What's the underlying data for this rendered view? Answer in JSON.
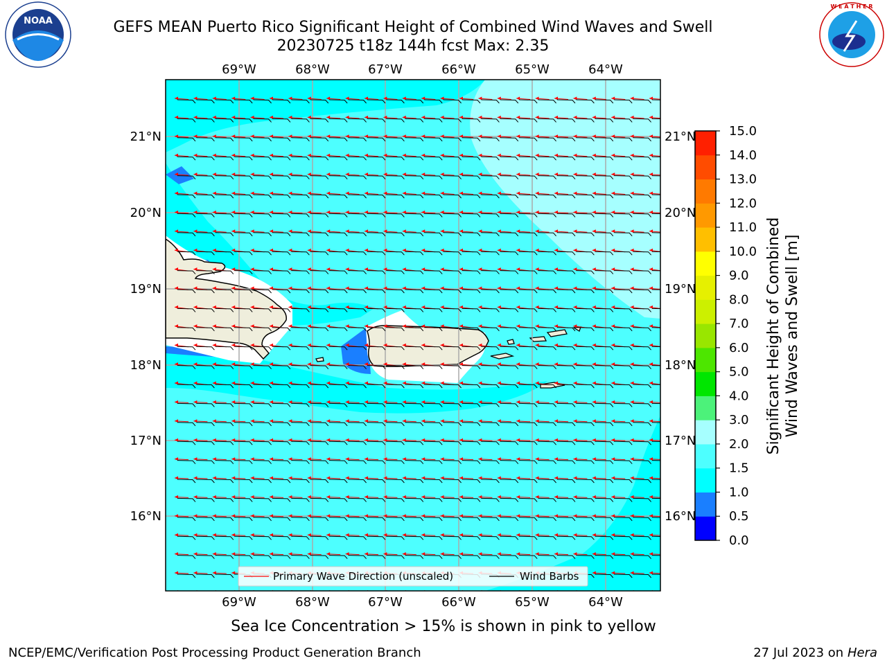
{
  "header": {
    "title_line1": "GEFS MEAN Puerto Rico Significant Height of Combined Wind Waves and Swell",
    "title_line2": "20230725 t18z 144h fcst   Max: 2.35"
  },
  "logos": {
    "left": {
      "name": "noaa-logo",
      "text": "NOAA",
      "ring_text": "NATIONAL OCEANIC AND ATMOSPHERIC ADMINISTRATION · U.S. DEPARTMENT OF COMMERCE"
    },
    "right": {
      "name": "nws-logo",
      "ring_text": "NATIONAL WEATHER SERVICE"
    }
  },
  "map": {
    "lon_labels": [
      "69°W",
      "68°W",
      "67°W",
      "66°W",
      "65°W",
      "64°W"
    ],
    "lat_labels": [
      "21°N",
      "20°N",
      "19°N",
      "18°N",
      "17°N",
      "16°N"
    ],
    "land_color": "#efeedc",
    "ocean_color_1_0_1_5": "#00ffff",
    "ocean_color_1_5_2_0": "#4dffff",
    "ocean_color_2_0_2_5": "#a6ffff",
    "low_color": "#1a7fff",
    "wave_arrow_color": "#ff0000",
    "barb_color": "#000000"
  },
  "legend": {
    "wave_direction": "Primary Wave Direction (unscaled)",
    "wind_barbs": "Wind Barbs"
  },
  "colorbar": {
    "label_line1": "Significant Height of Combined",
    "label_line2": "Wind Waves and Swell [m]",
    "ticks": [
      "0.0",
      "0.5",
      "1.0",
      "1.5",
      "2.0",
      "3.0",
      "4.0",
      "5.0",
      "6.0",
      "7.0",
      "8.0",
      "9.0",
      "10.0",
      "11.0",
      "12.0",
      "13.0",
      "14.0",
      "15.0"
    ],
    "colors": [
      "#0000ff",
      "#1a7fff",
      "#00ffff",
      "#4dffff",
      "#a6ffff",
      "#4cf27a",
      "#00e600",
      "#4de600",
      "#99e600",
      "#ccf000",
      "#e6f000",
      "#ffff00",
      "#ffbf00",
      "#ff9900",
      "#ff7a00",
      "#ff4c00",
      "#ff2000",
      "#ff0000"
    ]
  },
  "footer": {
    "note": "Sea Ice Concentration > 15% is shown in pink to yellow",
    "credit": "NCEP/EMC/Verification Post Processing Product Generation Branch",
    "date": "27 Jul 2023 on",
    "machine": "Hera"
  }
}
